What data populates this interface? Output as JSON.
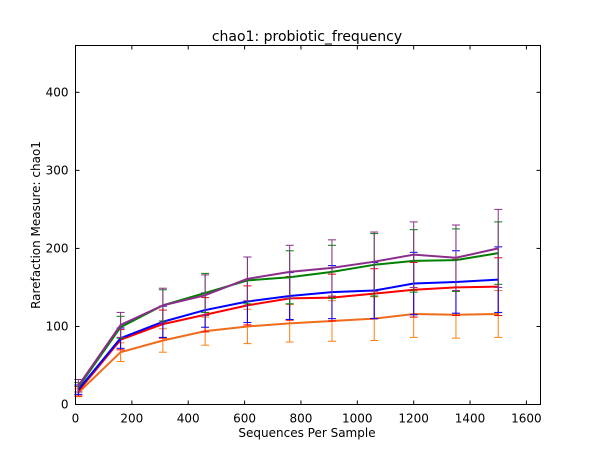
{
  "chart_data": {
    "type": "line",
    "title": "chao1: probiotic_frequency",
    "xlabel": "Sequences Per Sample",
    "ylabel": "Rarefaction Measure: chao1",
    "xlim": [
      0,
      1650
    ],
    "ylim": [
      0,
      460
    ],
    "xticks": [
      0,
      200,
      400,
      600,
      800,
      1000,
      1200,
      1400,
      1600
    ],
    "yticks": [
      0,
      100,
      200,
      300,
      400
    ],
    "grid": false,
    "x": [
      10,
      160,
      310,
      460,
      610,
      760,
      910,
      1060,
      1200,
      1350,
      1500
    ],
    "series": [
      {
        "color": "#ff7f0e",
        "line_color": "#ee6c1a",
        "values": [
          15,
          67,
          82,
          94,
          100,
          104,
          107,
          110,
          116,
          115,
          116
        ],
        "errors": [
          5,
          12,
          15,
          18,
          22,
          24,
          26,
          28,
          30,
          30,
          30
        ]
      },
      {
        "color": "#ff0000",
        "values": [
          17,
          83,
          103,
          115,
          127,
          136,
          137,
          142,
          147,
          150,
          151
        ],
        "errors": [
          6,
          13,
          18,
          22,
          25,
          28,
          30,
          32,
          35,
          36,
          37
        ]
      },
      {
        "color": "#0000ff",
        "values": [
          19,
          85,
          106,
          121,
          132,
          139,
          144,
          146,
          155,
          157,
          160
        ],
        "errors": [
          6,
          13,
          20,
          22,
          27,
          30,
          34,
          36,
          40,
          40,
          42
        ]
      },
      {
        "color": "#008000",
        "values": [
          22,
          99,
          127,
          143,
          159,
          163,
          170,
          179,
          184,
          185,
          194
        ],
        "errors": [
          6,
          14,
          20,
          25,
          30,
          34,
          34,
          40,
          40,
          40,
          40
        ]
      },
      {
        "color": "#8c2d8c",
        "values": [
          24,
          102,
          127,
          140,
          161,
          170,
          175,
          183,
          192,
          188,
          200
        ],
        "errors": [
          8,
          16,
          22,
          26,
          28,
          34,
          36,
          38,
          42,
          42,
          50
        ]
      }
    ]
  }
}
